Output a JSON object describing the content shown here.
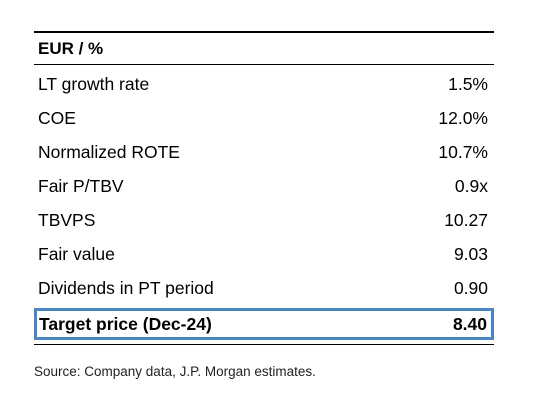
{
  "table": {
    "header": "EUR / %",
    "rows": [
      {
        "label": "LT growth rate",
        "value": "1.5%"
      },
      {
        "label": "COE",
        "value": "12.0%"
      },
      {
        "label": "Normalized ROTE",
        "value": "10.7%"
      },
      {
        "label": "Fair P/TBV",
        "value": "0.9x"
      },
      {
        "label": "TBVPS",
        "value": "10.27"
      },
      {
        "label": "Fair value",
        "value": "9.03"
      },
      {
        "label": "Dividends in PT period",
        "value": "0.90"
      }
    ],
    "highlight": {
      "label": "Target price (Dec-24)",
      "value": "8.40"
    },
    "highlight_border_color": "#4a86c0"
  },
  "source": "Source: Company data, J.P. Morgan estimates."
}
